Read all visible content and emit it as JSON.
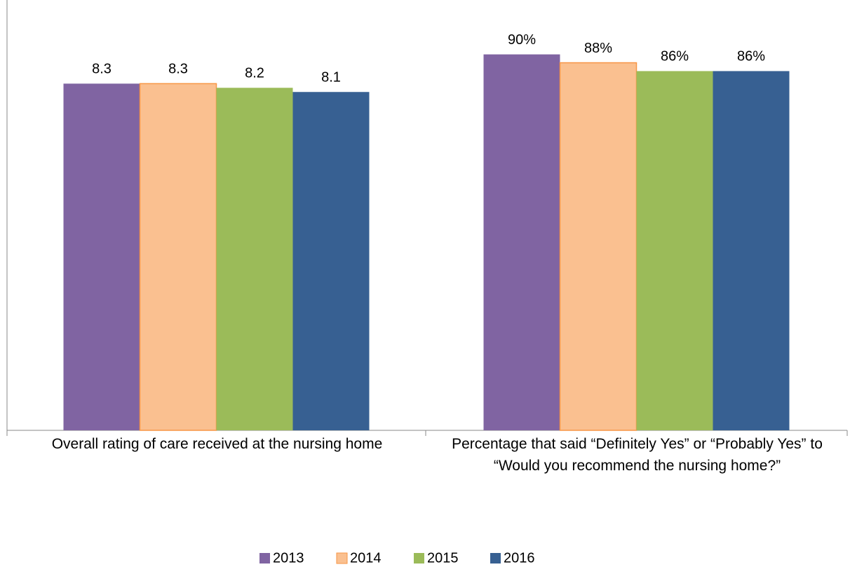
{
  "chart_data": {
    "type": "bar",
    "categories": [
      "Overall rating of care received at the nursing home",
      "Percentage that said “Definitely Yes” or “Probably Yes” to “Would you recommend the nursing home?”"
    ],
    "category_ylim": [
      [
        0,
        10
      ],
      [
        0,
        100
      ]
    ],
    "series": [
      {
        "name": "2013",
        "color": "#8064a2",
        "values": [
          8.3,
          90
        ],
        "value_labels": [
          "8.3",
          "90%"
        ]
      },
      {
        "name": "2014",
        "color": "#fac090",
        "values": [
          8.3,
          88
        ],
        "value_labels": [
          "8.3",
          "88%"
        ]
      },
      {
        "name": "2015",
        "color": "#9bbb59",
        "values": [
          8.2,
          86
        ],
        "value_labels": [
          "8.2",
          "86%"
        ]
      },
      {
        "name": "2016",
        "color": "#376092",
        "values": [
          8.1,
          86
        ],
        "value_labels": [
          "8.1",
          "86%"
        ]
      }
    ],
    "legend": "bottom"
  }
}
